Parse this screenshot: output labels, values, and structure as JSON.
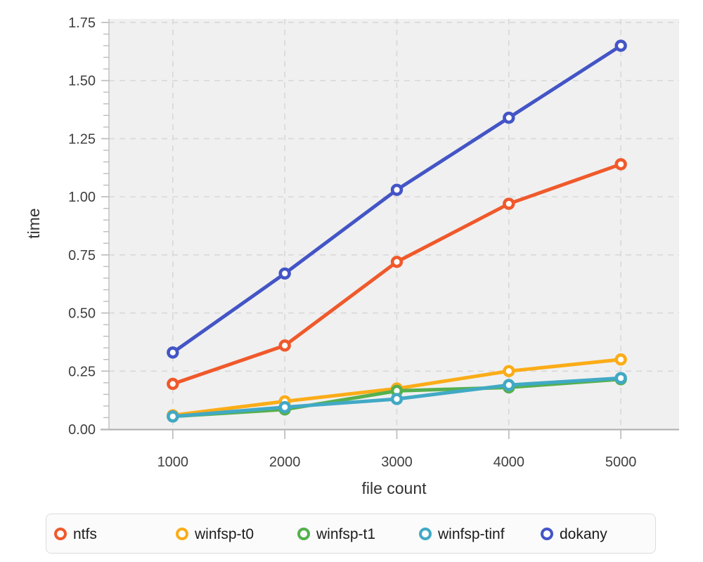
{
  "chart_data": {
    "type": "line",
    "x": [
      1000,
      2000,
      3000,
      4000,
      5000
    ],
    "x_tick_labels": [
      "1000",
      "2000",
      "3000",
      "4000",
      "5000"
    ],
    "y_tick_labels": [
      "0.00",
      "0.25",
      "0.50",
      "0.75",
      "1.00",
      "1.25",
      "1.50",
      "1.75"
    ],
    "yticks": [
      0,
      0.25,
      0.5,
      0.75,
      1.0,
      1.25,
      1.5,
      1.75
    ],
    "y_minor_step": 0.05,
    "xlabel": "file count",
    "ylabel": "time",
    "xlim": [
      430,
      5520
    ],
    "ylim": [
      0,
      1.765
    ],
    "grid": "dashed",
    "legend_position": "bottom",
    "series": [
      {
        "name": "ntfs",
        "color": "#f0592b",
        "values": [
          0.195,
          0.36,
          0.72,
          0.97,
          1.14
        ]
      },
      {
        "name": "winfsp-t0",
        "color": "#fbac18",
        "values": [
          0.06,
          0.12,
          0.175,
          0.25,
          0.3
        ]
      },
      {
        "name": "winfsp-t1",
        "color": "#55b04d",
        "values": [
          0.055,
          0.085,
          0.165,
          0.18,
          0.215
        ]
      },
      {
        "name": "winfsp-tinf",
        "color": "#41a9c5",
        "values": [
          0.055,
          0.095,
          0.13,
          0.19,
          0.22
        ]
      },
      {
        "name": "dokany",
        "color": "#4355c6",
        "values": [
          0.33,
          0.67,
          1.03,
          1.34,
          1.65
        ]
      }
    ],
    "style": {
      "plot_bg": "#f0f0f0",
      "grid_color": "#d8d8d8",
      "axis_line_color": "#c2c2c2",
      "bottom_axis_color": "#aeaeae",
      "tick_color": "#bdbdbd",
      "tick_label_color": "#404040",
      "axis_title_color": "#333333",
      "legend_text_color": "#1c1c1c",
      "legend_border": "#dcdcdc",
      "legend_bg": "#fbfbfb",
      "marker_fill": "#ffffff"
    }
  }
}
